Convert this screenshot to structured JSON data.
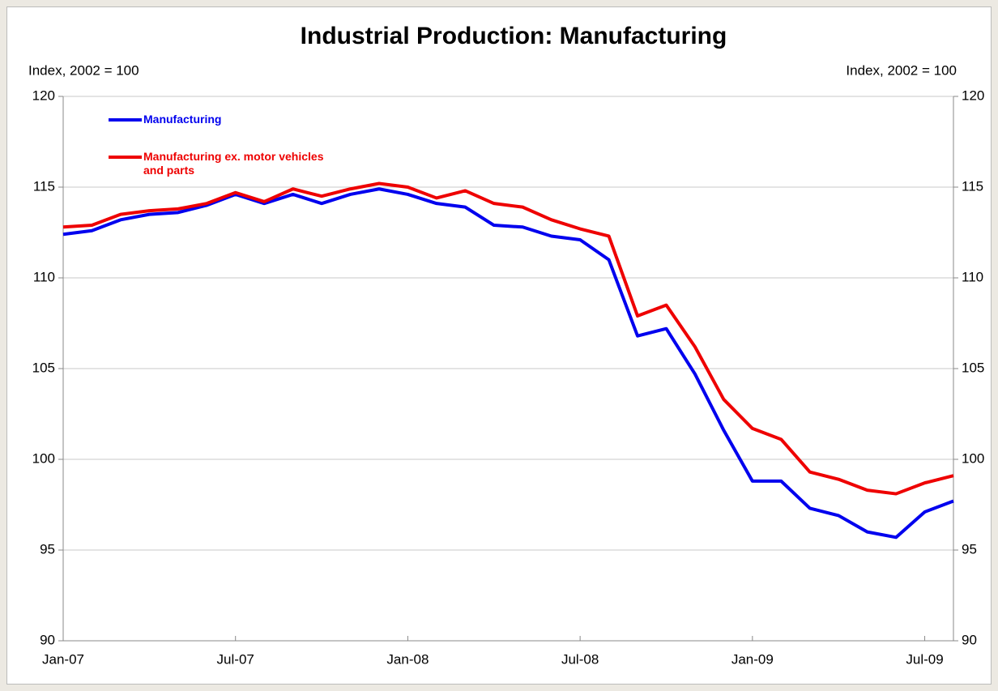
{
  "chart_data": {
    "type": "line",
    "title": "Industrial Production: Manufacturing",
    "y_label": "Index, 2002 = 100",
    "y2_label": "Index, 2002 = 100",
    "categories": [
      "Jan-07",
      null,
      null,
      null,
      null,
      null,
      "Jul-07",
      null,
      null,
      null,
      null,
      null,
      "Jan-08",
      null,
      null,
      null,
      null,
      null,
      "Jul-08",
      null,
      null,
      null,
      null,
      null,
      "Jan-09",
      null,
      null,
      null,
      null,
      null,
      "Jul-09",
      null
    ],
    "series": [
      {
        "name": "Manufacturing",
        "color": "#0000ee",
        "values": [
          112.4,
          112.6,
          113.2,
          113.5,
          113.6,
          114.0,
          114.6,
          114.1,
          114.6,
          114.1,
          114.6,
          114.9,
          114.6,
          114.1,
          113.9,
          112.9,
          112.8,
          112.3,
          112.1,
          111.0,
          106.8,
          107.2,
          104.7,
          101.6,
          98.8,
          98.8,
          97.3,
          96.9,
          96.0,
          95.7,
          97.1,
          97.7
        ]
      },
      {
        "name": "Manufacturing ex. motor vehicles and parts",
        "color": "#ee0000",
        "values": [
          112.8,
          112.9,
          113.5,
          113.7,
          113.8,
          114.1,
          114.7,
          114.2,
          114.9,
          114.5,
          114.9,
          115.2,
          115.0,
          114.4,
          114.8,
          114.1,
          113.9,
          113.2,
          112.7,
          112.3,
          107.9,
          108.5,
          106.2,
          103.3,
          101.7,
          101.1,
          99.3,
          98.9,
          98.3,
          98.1,
          98.7,
          99.1
        ]
      }
    ],
    "ylim": [
      90,
      120
    ],
    "yticks": [
      90,
      95,
      100,
      105,
      110,
      115,
      120
    ],
    "y2lim": [
      90,
      120
    ],
    "y2ticks": [
      90,
      95,
      100,
      105,
      110,
      115,
      120
    ],
    "grid": true,
    "legend": "upper left"
  }
}
